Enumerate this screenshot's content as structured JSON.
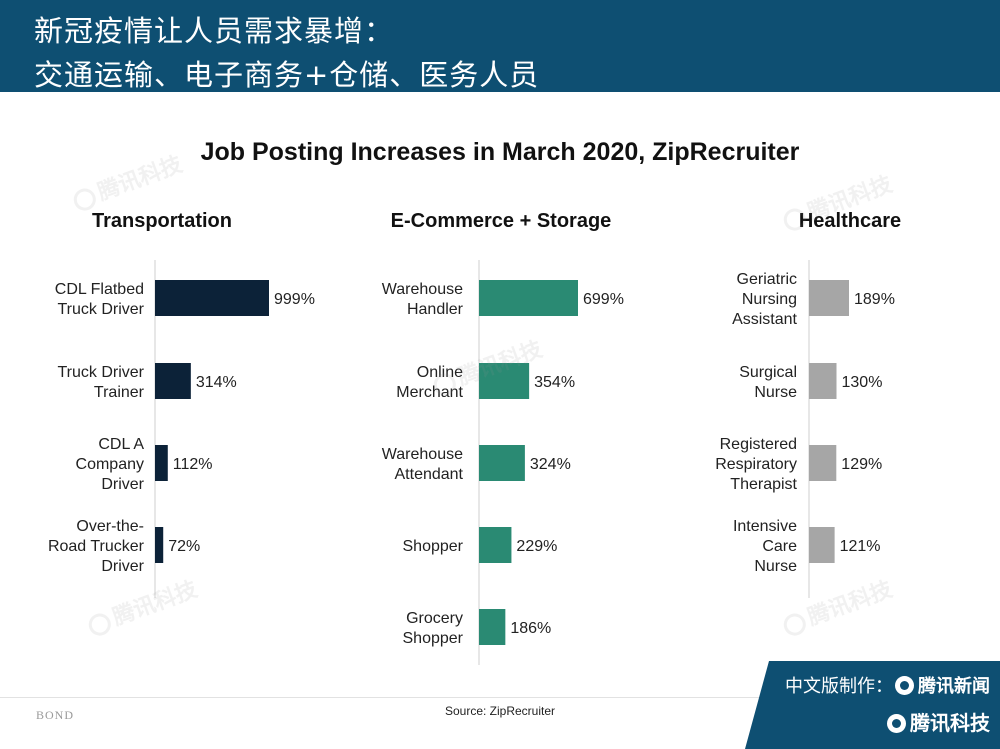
{
  "header": {
    "line1": "新冠疫情让人员需求暴增：",
    "line2": "交通运输、电子商务+仓储、医务人员"
  },
  "watermark": "腾讯科技",
  "chart_title": "Job Posting Increases in March 2020, ZipRecruiter",
  "chart_data": [
    {
      "type": "bar",
      "orientation": "horizontal",
      "title": "Transportation",
      "color": "#0c2238",
      "categories": [
        [
          "CDL Flatbed",
          "Truck Driver"
        ],
        [
          "Truck Driver",
          "Trainer"
        ],
        [
          "CDL A",
          "Company",
          "Driver"
        ],
        [
          "Over-the-",
          "Road Trucker",
          "Driver"
        ]
      ],
      "values": [
        999,
        314,
        112,
        72
      ],
      "labels": [
        "999%",
        "314%",
        "112%",
        "72%"
      ],
      "unit": "%"
    },
    {
      "type": "bar",
      "orientation": "horizontal",
      "title": "E-Commerce + Storage",
      "color": "#2a8a73",
      "categories": [
        [
          "Warehouse",
          "Handler"
        ],
        [
          "Online",
          "Merchant"
        ],
        [
          "Warehouse",
          "Attendant"
        ],
        [
          "Shopper"
        ],
        [
          "Grocery",
          "Shopper"
        ]
      ],
      "values": [
        699,
        354,
        324,
        229,
        186
      ],
      "labels": [
        "699%",
        "354%",
        "324%",
        "229%",
        "186%"
      ],
      "unit": "%"
    },
    {
      "type": "bar",
      "orientation": "horizontal",
      "title": "Healthcare",
      "color": "#a6a6a6",
      "categories": [
        [
          "Geriatric",
          "Nursing",
          "Assistant"
        ],
        [
          "Surgical",
          "Nurse"
        ],
        [
          "Registered",
          "Respiratory",
          "Therapist"
        ],
        [
          "Intensive",
          "Care",
          "Nurse"
        ]
      ],
      "values": [
        189,
        130,
        129,
        121
      ],
      "labels": [
        "189%",
        "130%",
        "129%",
        "121%"
      ],
      "unit": "%"
    }
  ],
  "footer": {
    "source": "Source: ZipRecruiter",
    "bond": "BOND",
    "badge_line1": "中文版制作：",
    "badge_brand1": "腾讯新闻",
    "badge_brand2": "腾讯科技"
  }
}
